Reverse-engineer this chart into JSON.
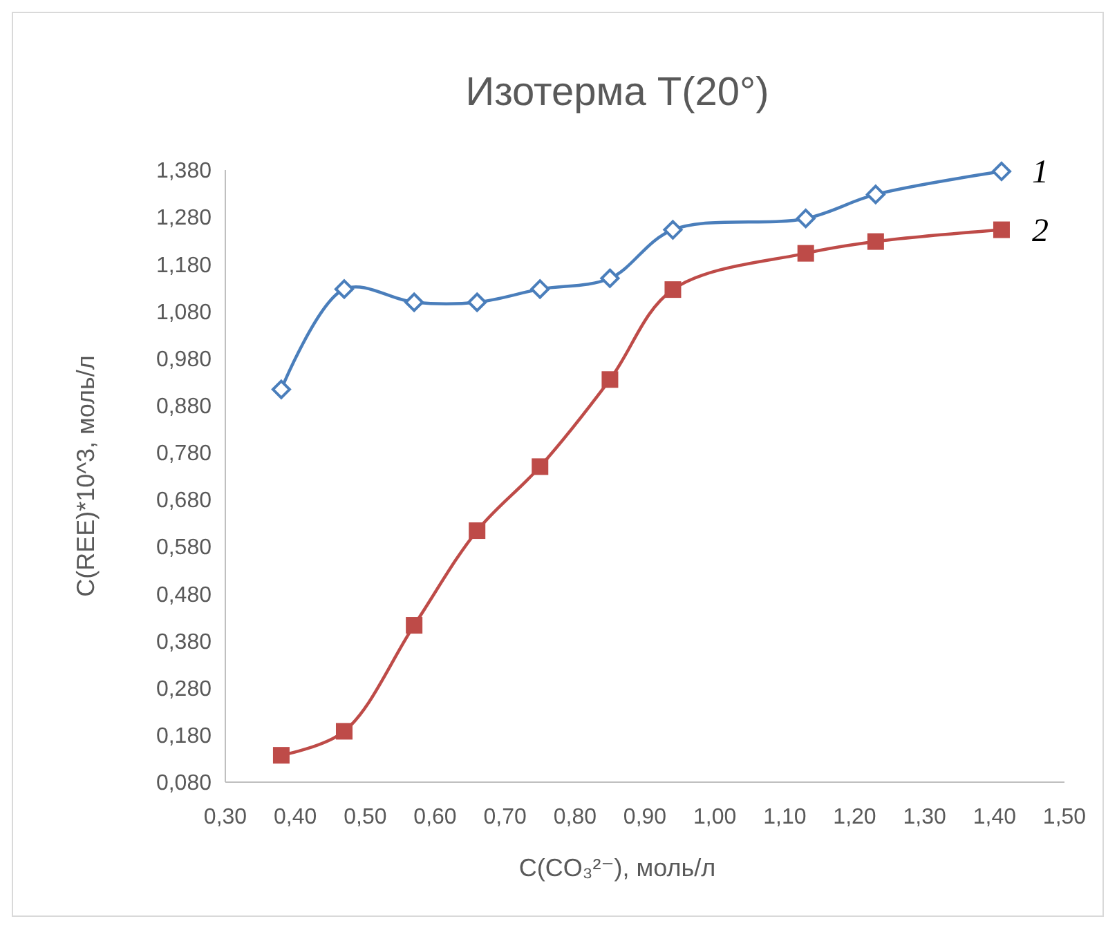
{
  "chart_data": {
    "type": "line",
    "title": "Изотерма T(20°)",
    "xlabel": "C(CO₃²⁻), моль/л",
    "ylabel": "C(REE)*10^3, моль/л",
    "x": [
      0.38,
      0.47,
      0.57,
      0.66,
      0.75,
      0.85,
      0.94,
      1.13,
      1.23,
      1.41
    ],
    "series": [
      {
        "name": "1",
        "color": "#4a7ebb",
        "marker": "diamond",
        "values": [
          0.914,
          1.127,
          1.099,
          1.099,
          1.127,
          1.15,
          1.253,
          1.277,
          1.328,
          1.377
        ]
      },
      {
        "name": "2",
        "color": "#be4b48",
        "marker": "square",
        "values": [
          0.137,
          0.188,
          0.413,
          0.614,
          0.75,
          0.935,
          1.126,
          1.203,
          1.228,
          1.253
        ]
      }
    ],
    "xlim": [
      0.3,
      1.5
    ],
    "xticks": [
      {
        "value": 0.3,
        "label": "0,30"
      },
      {
        "value": 0.4,
        "label": "0,40"
      },
      {
        "value": 0.5,
        "label": "0,50"
      },
      {
        "value": 0.6,
        "label": "0,60"
      },
      {
        "value": 0.7,
        "label": "0,70"
      },
      {
        "value": 0.8,
        "label": "0,80"
      },
      {
        "value": 0.9,
        "label": "0,90"
      },
      {
        "value": 1.0,
        "label": "1,00"
      },
      {
        "value": 1.1,
        "label": "1,10"
      },
      {
        "value": 1.2,
        "label": "1,20"
      },
      {
        "value": 1.3,
        "label": "1,30"
      },
      {
        "value": 1.4,
        "label": "1,40"
      },
      {
        "value": 1.5,
        "label": "1,50"
      }
    ],
    "ylim": [
      0.08,
      1.38
    ],
    "yticks": [
      {
        "value": 0.08,
        "label": "0,080"
      },
      {
        "value": 0.18,
        "label": "0,180"
      },
      {
        "value": 0.28,
        "label": "0,280"
      },
      {
        "value": 0.38,
        "label": "0,380"
      },
      {
        "value": 0.48,
        "label": "0,480"
      },
      {
        "value": 0.58,
        "label": "0,580"
      },
      {
        "value": 0.68,
        "label": "0,680"
      },
      {
        "value": 0.78,
        "label": "0,780"
      },
      {
        "value": 0.88,
        "label": "0,880"
      },
      {
        "value": 0.98,
        "label": "0,980"
      },
      {
        "value": 1.08,
        "label": "1,080"
      },
      {
        "value": 1.18,
        "label": "1,180"
      },
      {
        "value": 1.28,
        "label": "1,280"
      },
      {
        "value": 1.38,
        "label": "1,380"
      }
    ],
    "grid": false,
    "line_style": "solid"
  }
}
